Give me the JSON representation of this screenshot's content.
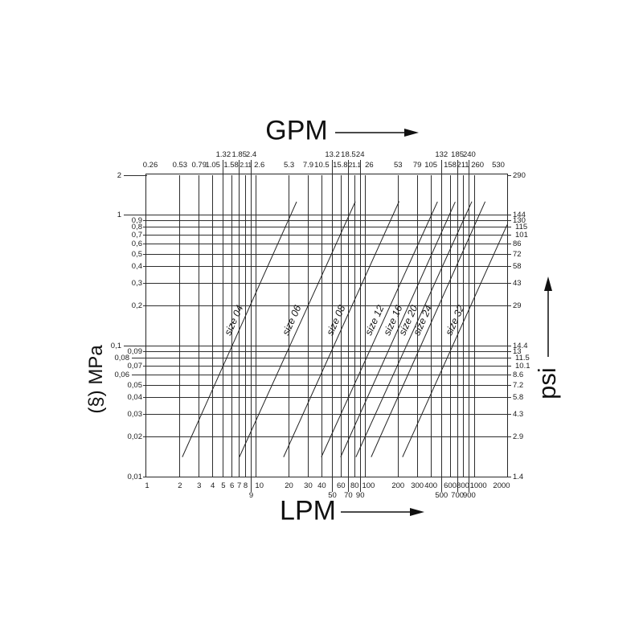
{
  "chart_data": {
    "type": "line",
    "description": "Pressure drop vs flow rate nomograph for coupling sizes, log-log scales",
    "scale": {
      "x": "log",
      "y": "log"
    },
    "background": "#ffffff",
    "line_color": "#2b2b2b",
    "x_axis": {
      "top_title": "GPM",
      "bottom_title": "LPM",
      "x_range_lpm": [
        1,
        2000
      ],
      "ticks": [
        {
          "lpm": 1,
          "lpm_label": "1",
          "gpm_label": "0.26"
        },
        {
          "lpm": 2,
          "lpm_label": "2",
          "gpm_label": "0.53"
        },
        {
          "lpm": 3,
          "lpm_label": "3",
          "gpm_label": "0.79"
        },
        {
          "lpm": 4,
          "lpm_label": "4",
          "gpm_label": "1.05"
        },
        {
          "lpm": 5,
          "lpm_label": "5",
          "gpm_label": "1.32",
          "gpm_row2": true
        },
        {
          "lpm": 6,
          "lpm_label": "6",
          "gpm_label": "1.58"
        },
        {
          "lpm": 7,
          "lpm_label": "7",
          "gpm_label": "1.85",
          "gpm_row2": true
        },
        {
          "lpm": 8,
          "lpm_label": "8",
          "gpm_label": "2.11"
        },
        {
          "lpm": 9,
          "lpm_label": "9",
          "gpm_label": "2.4",
          "gpm_row2": true,
          "lpm_row2": true
        },
        {
          "lpm": 10,
          "lpm_label": "10",
          "gpm_label": "2.6"
        },
        {
          "lpm": 20,
          "lpm_label": "20",
          "gpm_label": "5.3"
        },
        {
          "lpm": 30,
          "lpm_label": "30",
          "gpm_label": "7.9"
        },
        {
          "lpm": 40,
          "lpm_label": "40",
          "gpm_label": "10.5"
        },
        {
          "lpm": 50,
          "lpm_label": "50",
          "gpm_label": "13.2",
          "gpm_row2": true,
          "lpm_row2": true
        },
        {
          "lpm": 60,
          "lpm_label": "60",
          "gpm_label": "15.8"
        },
        {
          "lpm": 70,
          "lpm_label": "70",
          "gpm_label": "18.5",
          "gpm_row2": true,
          "lpm_row2": true
        },
        {
          "lpm": 80,
          "lpm_label": "80",
          "gpm_label": "21.1"
        },
        {
          "lpm": 90,
          "lpm_label": "90",
          "gpm_label": "24",
          "gpm_row2": true,
          "lpm_row2": true
        },
        {
          "lpm": 100,
          "lpm_label": "100",
          "gpm_label": "26"
        },
        {
          "lpm": 200,
          "lpm_label": "200",
          "gpm_label": "53"
        },
        {
          "lpm": 300,
          "lpm_label": "300",
          "gpm_label": "79"
        },
        {
          "lpm": 400,
          "lpm_label": "400",
          "gpm_label": "105"
        },
        {
          "lpm": 500,
          "lpm_label": "500",
          "gpm_label": "132",
          "gpm_row2": true,
          "lpm_row2": true
        },
        {
          "lpm": 600,
          "lpm_label": "600",
          "gpm_label": "158"
        },
        {
          "lpm": 700,
          "lpm_label": "700",
          "gpm_label": "185",
          "gpm_row2": true,
          "lpm_row2": true
        },
        {
          "lpm": 800,
          "lpm_label": "800",
          "gpm_label": "211"
        },
        {
          "lpm": 900,
          "lpm_label": "900",
          "gpm_label": "240",
          "gpm_row2": true,
          "lpm_row2": true
        },
        {
          "lpm": 1000,
          "lpm_label": "1000",
          "gpm_label": "260"
        },
        {
          "lpm": 2000,
          "lpm_label": "2000",
          "gpm_label": "530"
        }
      ]
    },
    "y_axis": {
      "left_title": "(§) MPa",
      "right_title": "psi",
      "y_range_mpa": [
        0.01,
        2
      ],
      "ticks": [
        {
          "mpa": 2,
          "mpa_label": "2",
          "psi_label": "290",
          "left_pos": "far"
        },
        {
          "mpa": 1,
          "mpa_label": "1",
          "psi_label": "144",
          "left_pos": "far"
        },
        {
          "mpa": 0.9,
          "mpa_label": "0,9",
          "psi_label": "130"
        },
        {
          "mpa": 0.8,
          "mpa_label": "0,8",
          "psi_label": "115"
        },
        {
          "mpa": 0.7,
          "mpa_label": "0,7",
          "psi_label": "101"
        },
        {
          "mpa": 0.6,
          "mpa_label": "0,6",
          "psi_label": "86"
        },
        {
          "mpa": 0.5,
          "mpa_label": "0,5",
          "psi_label": "72"
        },
        {
          "mpa": 0.4,
          "mpa_label": "0,4",
          "psi_label": "58"
        },
        {
          "mpa": 0.3,
          "mpa_label": "0,3",
          "psi_label": "43"
        },
        {
          "mpa": 0.2,
          "mpa_label": "0,2",
          "psi_label": "29"
        },
        {
          "mpa": 0.1,
          "mpa_label": "0,1",
          "psi_label": "14.4",
          "left_pos": "far"
        },
        {
          "mpa": 0.09,
          "mpa_label": "0,09",
          "psi_label": "13"
        },
        {
          "mpa": 0.08,
          "mpa_label": "0,08",
          "psi_label": "11.5",
          "left_pos": "mid"
        },
        {
          "mpa": 0.07,
          "mpa_label": "0,07",
          "psi_label": "10.1"
        },
        {
          "mpa": 0.06,
          "mpa_label": "0,06",
          "psi_label": "8.6",
          "left_pos": "mid"
        },
        {
          "mpa": 0.05,
          "mpa_label": "0,05",
          "psi_label": "7.2"
        },
        {
          "mpa": 0.04,
          "mpa_label": "0,04",
          "psi_label": "5.8"
        },
        {
          "mpa": 0.03,
          "mpa_label": "0,03",
          "psi_label": "4.3"
        },
        {
          "mpa": 0.02,
          "mpa_label": "0,02",
          "psi_label": "2.9"
        },
        {
          "mpa": 0.01,
          "mpa_label": "0,01",
          "psi_label": "1.4"
        }
      ]
    },
    "series": [
      {
        "label": "size 04",
        "line_lpm_mpa": [
          [
            2.1,
            0.014
          ],
          [
            23.5,
            1.25
          ]
        ]
      },
      {
        "label": "size 06",
        "line_lpm_mpa": [
          [
            7,
            0.014
          ],
          [
            81,
            1.25
          ]
        ]
      },
      {
        "label": "size 08",
        "line_lpm_mpa": [
          [
            18,
            0.014
          ],
          [
            206,
            1.25
          ]
        ]
      },
      {
        "label": "size 12",
        "line_lpm_mpa": [
          [
            40,
            0.014
          ],
          [
            465,
            1.25
          ]
        ]
      },
      {
        "label": "size 16",
        "line_lpm_mpa": [
          [
            60,
            0.014
          ],
          [
            676,
            1.25
          ]
        ]
      },
      {
        "label": "size 20",
        "line_lpm_mpa": [
          [
            82,
            0.014
          ],
          [
            948,
            1.25
          ]
        ]
      },
      {
        "label": "size 24",
        "line_lpm_mpa": [
          [
            114,
            0.014
          ],
          [
            1265,
            1.25
          ]
        ]
      },
      {
        "label": "size 32",
        "line_lpm_mpa": [
          [
            220,
            0.014
          ],
          [
            2000,
            0.83
          ]
        ]
      }
    ]
  }
}
